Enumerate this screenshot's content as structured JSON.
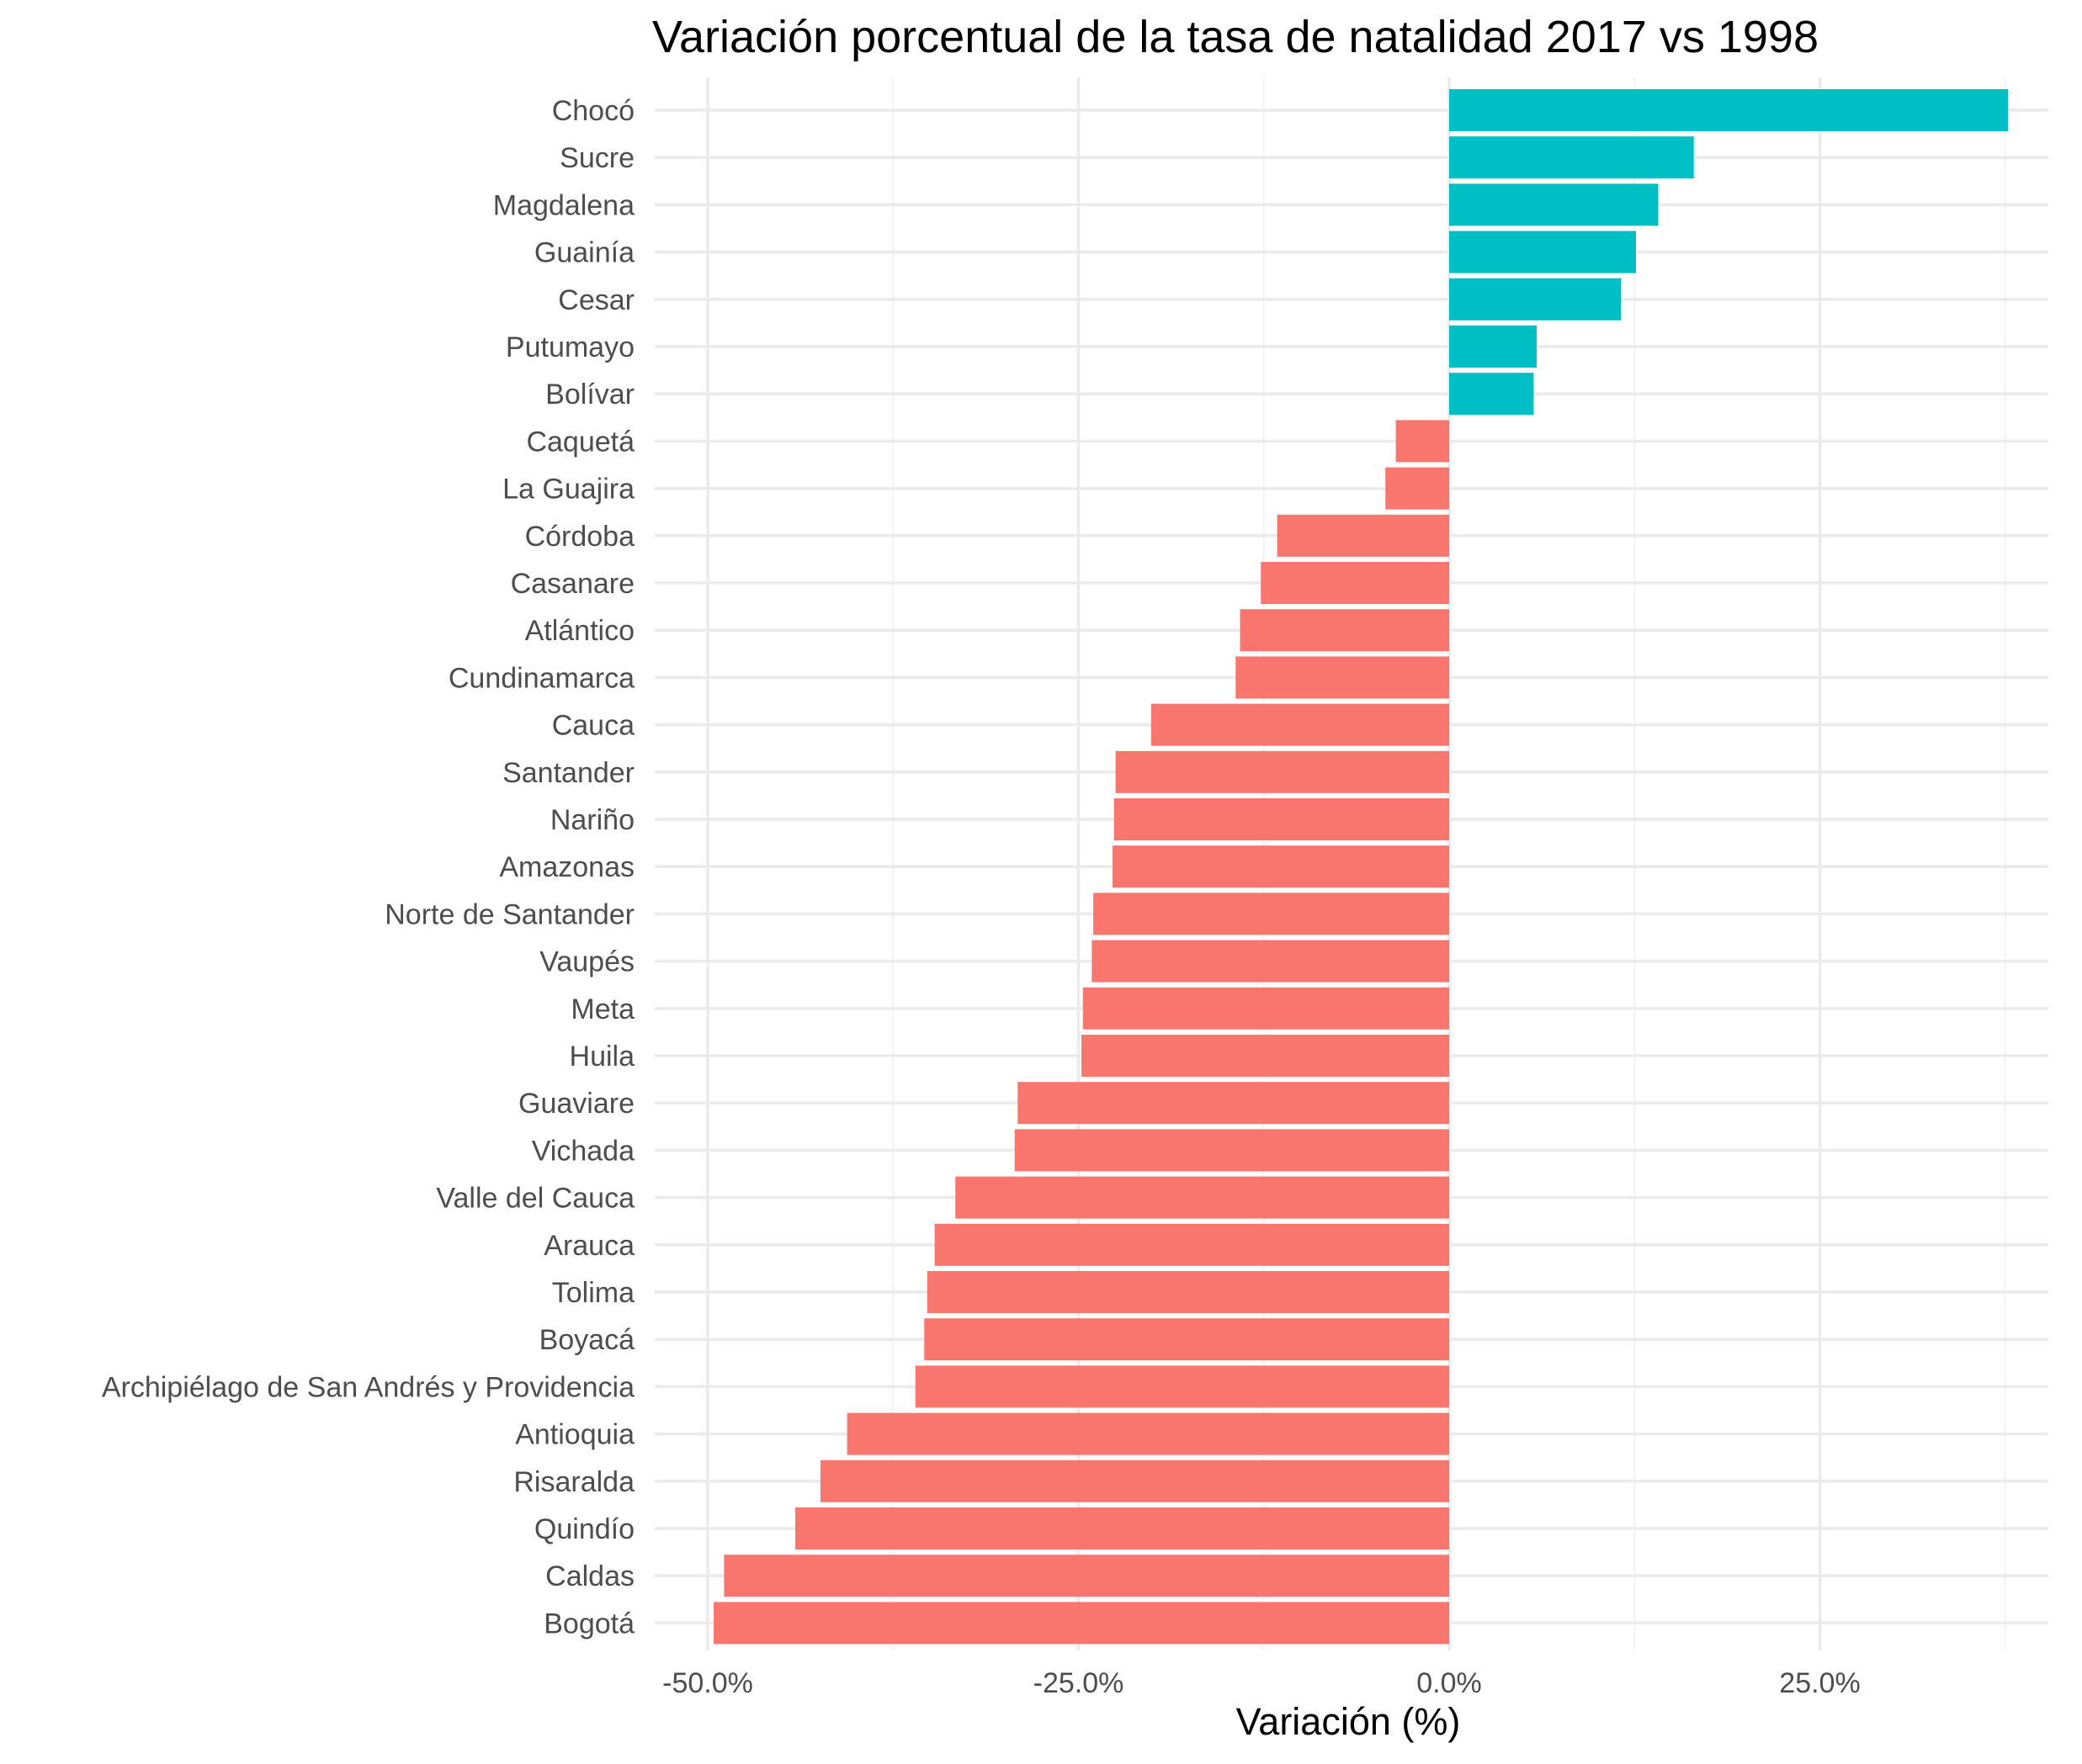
{
  "chart_data": {
    "type": "bar",
    "orientation": "horizontal",
    "title": "Variación porcentual de la tasa de natalidad 2017 vs 1998",
    "xlabel": "Variación (%)",
    "ylabel": "",
    "xlim": [
      -50.0,
      38.0
    ],
    "xticks": [
      -50,
      -25,
      0,
      25
    ],
    "xtick_labels": [
      "-50.0%",
      "-25.0%",
      "0.0%",
      "25.0%"
    ],
    "grid": true,
    "legend": "none",
    "colors": {
      "positive": "#00BFC4",
      "negative": "#F8766D"
    },
    "categories": [
      "Chocó",
      "Sucre",
      "Magdalena",
      "Guainía",
      "Cesar",
      "Putumayo",
      "Bolívar",
      "Caquetá",
      "La Guajira",
      "Córdoba",
      "Casanare",
      "Atlántico",
      "Cundinamarca",
      "Cauca",
      "Santander",
      "Nariño",
      "Amazonas",
      "Norte de Santander",
      "Vaupés",
      "Meta",
      "Huila",
      "Guaviare",
      "Vichada",
      "Valle del Cauca",
      "Arauca",
      "Tolima",
      "Boyacá",
      "Archipiélago de San Andrés y Providencia",
      "Antioquia",
      "Risaralda",
      "Quindío",
      "Caldas",
      "Bogotá"
    ],
    "values": [
      37.7,
      16.5,
      14.1,
      12.6,
      11.6,
      5.9,
      5.7,
      -3.6,
      -4.3,
      -11.6,
      -12.7,
      -14.1,
      -14.4,
      -20.1,
      -22.5,
      -22.6,
      -22.7,
      -24.0,
      -24.1,
      -24.7,
      -24.8,
      -29.1,
      -29.3,
      -33.3,
      -34.7,
      -35.2,
      -35.4,
      -36.0,
      -40.6,
      -42.4,
      -44.1,
      -48.9,
      -49.6
    ]
  }
}
